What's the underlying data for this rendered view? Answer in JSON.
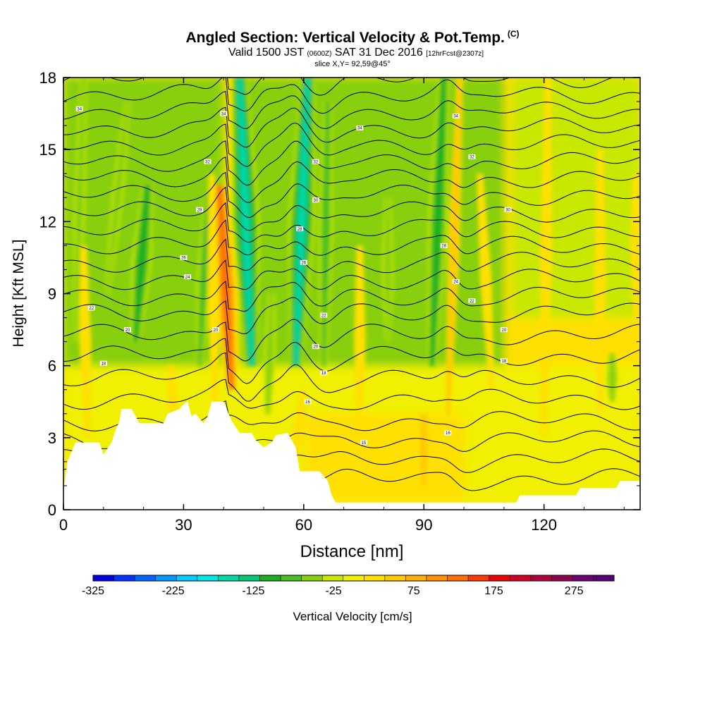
{
  "title": {
    "main": "Angled Section: Vertical Velocity & Pot.Temp.",
    "main_tag": "(C)",
    "valid_prefix": "Valid 1500 JST",
    "valid_utc": "(0600Z)",
    "valid_date": "SAT 31 Dec 2016",
    "forecast": "[12hrFcst@2307z]",
    "slice": "slice X,Y= 92,59@45°"
  },
  "chart_data": {
    "type": "heatmap",
    "xlabel": "Distance [nm]",
    "ylabel": "Height [Kft MSL]",
    "xlim": [
      0,
      144
    ],
    "ylim": [
      0,
      18
    ],
    "x_ticks": [
      0,
      30,
      60,
      90,
      120
    ],
    "y_ticks": [
      0,
      3,
      6,
      9,
      12,
      15,
      18
    ],
    "colorbar": {
      "label": "Vertical Velocity [cm/s]",
      "min": -325,
      "max": 325,
      "tick_values": [
        -325,
        -225,
        -125,
        -25,
        75,
        175,
        275
      ],
      "tick_labels": [
        "-325",
        "-225",
        "-125",
        "-25",
        "75",
        "175",
        "275"
      ],
      "colors": [
        "#0000e0",
        "#0033ff",
        "#0066ff",
        "#0099ff",
        "#00ccff",
        "#00e6e6",
        "#00d8a8",
        "#00c878",
        "#18b020",
        "#48c020",
        "#88d010",
        "#c8e800",
        "#f0f000",
        "#ffe000",
        "#ffc800",
        "#ffb000",
        "#ff9000",
        "#ff6e00",
        "#ff3800",
        "#ee0000",
        "#d00028",
        "#b00040",
        "#900050",
        "#700070",
        "#580078"
      ]
    },
    "terrain_kft": [
      [
        0,
        0.8
      ],
      [
        1,
        2
      ],
      [
        3,
        2.8
      ],
      [
        9,
        2.8
      ],
      [
        10,
        2.3
      ],
      [
        12,
        2.8
      ],
      [
        13,
        3.3
      ],
      [
        14,
        3.7
      ],
      [
        14.5,
        4.2
      ],
      [
        17,
        4.2
      ],
      [
        19,
        3.6
      ],
      [
        25,
        3.6
      ],
      [
        26,
        4.0
      ],
      [
        29,
        4.2
      ],
      [
        30,
        4.4
      ],
      [
        31,
        4.5
      ],
      [
        32,
        3.9
      ],
      [
        33,
        4.0
      ],
      [
        35,
        3.6
      ],
      [
        36,
        3.9
      ],
      [
        37,
        4.5
      ],
      [
        40,
        4.5
      ],
      [
        42,
        3.7
      ],
      [
        44,
        3.2
      ],
      [
        47,
        3.2
      ],
      [
        48,
        2.9
      ],
      [
        50,
        2.6
      ],
      [
        52,
        2.8
      ],
      [
        53,
        3.1
      ],
      [
        56,
        3.2
      ],
      [
        58,
        2.6
      ],
      [
        59,
        1.6
      ],
      [
        64,
        1.6
      ],
      [
        66,
        1.2
      ],
      [
        67,
        0.6
      ],
      [
        68,
        0.3
      ],
      [
        85,
        0.3
      ],
      [
        113,
        0.3
      ],
      [
        114,
        0.6
      ],
      [
        128,
        0.6
      ],
      [
        129,
        0.9
      ],
      [
        138,
        0.9
      ],
      [
        139,
        1.2
      ],
      [
        144,
        1.2
      ]
    ],
    "updraft_bands": [
      {
        "x": 42,
        "x_top": 39,
        "bottom": 5.0,
        "top": 13.5,
        "w": 126
      },
      {
        "x": 6,
        "x_top": 5,
        "bottom": 3,
        "top": 11,
        "w": 18
      },
      {
        "x": 38,
        "x_top": 37,
        "bottom": 3,
        "top": 14,
        "w": 35
      },
      {
        "x": 74,
        "x_top": 74,
        "bottom": 3,
        "top": 11,
        "w": 27
      },
      {
        "x": 96,
        "x_top": 99,
        "bottom": 4,
        "top": 18,
        "w": 55
      },
      {
        "x": 107,
        "x_top": 104,
        "bottom": 5,
        "top": 14,
        "w": 27
      },
      {
        "x": 120,
        "x_top": 121,
        "bottom": 3,
        "top": 18,
        "w": 27
      },
      {
        "x": 134,
        "x_top": 134,
        "bottom": 4,
        "top": 15,
        "w": 27
      },
      {
        "x": 143,
        "x_top": 143,
        "bottom": 8,
        "top": 14,
        "w": 27
      },
      {
        "x": 28,
        "x_top": 27,
        "bottom": 0.5,
        "top": 6,
        "w": 18
      },
      {
        "x": 58,
        "x_top": 60,
        "bottom": 2,
        "top": 5,
        "w": 27
      },
      {
        "x": 90,
        "x_top": 90,
        "bottom": 1,
        "top": 4,
        "w": 45
      }
    ],
    "downdraft_bands": [
      {
        "x": 47,
        "x_top": 44,
        "bottom": 6,
        "top": 18,
        "w": -160
      },
      {
        "x": 58,
        "x_top": 61,
        "bottom": 6,
        "top": 18,
        "w": -150
      },
      {
        "x": 18,
        "x_top": 21,
        "bottom": 7,
        "top": 13.5,
        "w": -110
      },
      {
        "x": 92,
        "x_top": 95,
        "bottom": 6,
        "top": 18,
        "w": -105
      },
      {
        "x": 65,
        "x_top": 66,
        "bottom": 6,
        "top": 17,
        "w": -75
      },
      {
        "x": 3,
        "x_top": 5,
        "bottom": 7,
        "top": 18,
        "w": -55
      },
      {
        "x": 11,
        "x_top": 16,
        "bottom": 9,
        "top": 17,
        "w": -55
      },
      {
        "x": 34,
        "x_top": 36,
        "bottom": 6,
        "top": 13,
        "w": -70
      },
      {
        "x": 51,
        "x_top": 52,
        "bottom": 4,
        "top": 9,
        "w": -60
      },
      {
        "x": 81,
        "x_top": 81,
        "bottom": 7,
        "top": 13,
        "w": -45
      },
      {
        "x": 137,
        "x_top": 137,
        "bottom": 4.5,
        "top": 6.5,
        "w": -60
      }
    ],
    "isentropes": {
      "levels_kft": [
        1.3,
        2.1,
        2.9,
        3.7,
        4.6,
        5.5,
        6.4,
        7.3,
        8.2,
        8.9,
        9.6,
        10.3,
        11.0,
        11.7,
        12.4,
        13.1,
        13.8,
        14.5,
        15.2,
        15.9,
        16.6,
        17.3,
        18.0
      ],
      "labels": [
        {
          "text": "15",
          "x": 75,
          "y": 2.8
        },
        {
          "text": "16",
          "x": 61,
          "y": 4.5
        },
        {
          "text": "16",
          "x": 96,
          "y": 3.2
        },
        {
          "text": "18",
          "x": 10,
          "y": 6.1
        },
        {
          "text": "18",
          "x": 65,
          "y": 5.7
        },
        {
          "text": "18",
          "x": 110,
          "y": 6.2
        },
        {
          "text": "20",
          "x": 16,
          "y": 7.5
        },
        {
          "text": "20",
          "x": 38,
          "y": 7.5
        },
        {
          "text": "20",
          "x": 63,
          "y": 6.8
        },
        {
          "text": "20",
          "x": 110,
          "y": 7.5
        },
        {
          "text": "22",
          "x": 7,
          "y": 8.4
        },
        {
          "text": "22",
          "x": 65,
          "y": 8.1
        },
        {
          "text": "22",
          "x": 102,
          "y": 8.7
        },
        {
          "text": "24",
          "x": 31,
          "y": 9.7
        },
        {
          "text": "24",
          "x": 98,
          "y": 9.5
        },
        {
          "text": "26",
          "x": 30,
          "y": 10.5
        },
        {
          "text": "26",
          "x": 60,
          "y": 10.3
        },
        {
          "text": "28",
          "x": 34,
          "y": 12.5
        },
        {
          "text": "28",
          "x": 59,
          "y": 11.7
        },
        {
          "text": "28",
          "x": 95,
          "y": 11.0
        },
        {
          "text": "30",
          "x": 63,
          "y": 12.9
        },
        {
          "text": "30",
          "x": 111,
          "y": 12.5
        },
        {
          "text": "32",
          "x": 36,
          "y": 14.5
        },
        {
          "text": "32",
          "x": 63,
          "y": 14.5
        },
        {
          "text": "32",
          "x": 102,
          "y": 14.7
        },
        {
          "text": "34",
          "x": 4,
          "y": 16.7
        },
        {
          "text": "34",
          "x": 40,
          "y": 16.5
        },
        {
          "text": "34",
          "x": 74,
          "y": 15.9
        },
        {
          "text": "34",
          "x": 98,
          "y": 16.4
        }
      ]
    },
    "grid": false
  }
}
